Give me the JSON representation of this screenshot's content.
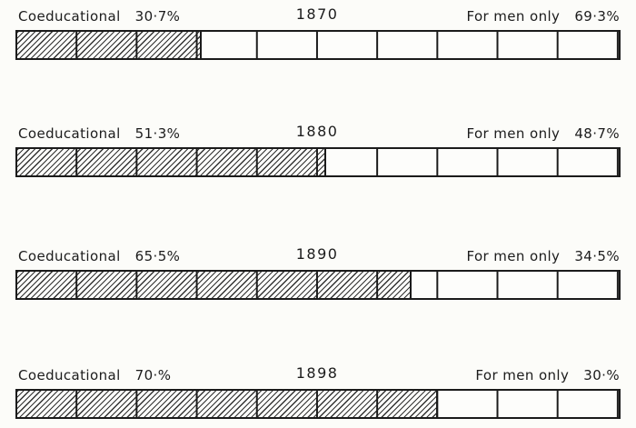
{
  "page": {
    "paper_color": "#fcfcf9",
    "ink_color": "#1b1b1b"
  },
  "chart_data": {
    "type": "bar",
    "orientation": "horizontal",
    "stacked": true,
    "unit": "%",
    "xlim": [
      0,
      100
    ],
    "segment_gridlines_every": 10,
    "legend_position": "none",
    "categories": [
      "1870",
      "1880",
      "1890",
      "1898"
    ],
    "series": [
      {
        "name": "Coeducational",
        "style": "hatched",
        "values": [
          30.7,
          51.3,
          65.5,
          70.0
        ]
      },
      {
        "name": "For men only",
        "style": "empty",
        "values": [
          69.3,
          48.7,
          34.5,
          30.0
        ]
      }
    ],
    "rows": [
      {
        "year": "1870",
        "left_label": "Coeducational",
        "left_value": "30·7%",
        "right_label": "For men only",
        "right_value": "69·3%",
        "coed_pct": 30.7
      },
      {
        "year": "1880",
        "left_label": "Coeducational",
        "left_value": "51·3%",
        "right_label": "For men only",
        "right_value": "48·7%",
        "coed_pct": 51.3
      },
      {
        "year": "1890",
        "left_label": "Coeducational",
        "left_value": "65·5%",
        "right_label": "For men only",
        "right_value": "34·5%",
        "coed_pct": 65.5
      },
      {
        "year": "1898",
        "left_label": "Coeducational",
        "left_value": "70·%",
        "right_label": "For men only",
        "right_value": "30·%",
        "coed_pct": 70.0
      }
    ]
  }
}
